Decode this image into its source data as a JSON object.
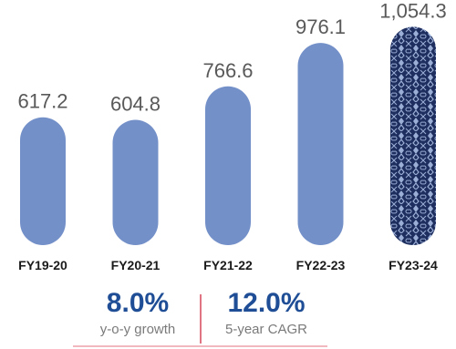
{
  "chart_data": {
    "type": "bar",
    "title": "",
    "xlabel": "",
    "ylabel": "",
    "categories": [
      "FY19-20",
      "FY20-21",
      "FY21-22",
      "FY22-23",
      "FY23-24"
    ],
    "values": [
      617.2,
      604.8,
      766.6,
      976.1,
      1054.3
    ],
    "value_labels": [
      "617.2",
      "604.8",
      "766.6",
      "976.1",
      "1,054.3"
    ],
    "ylim": [
      0,
      1100
    ],
    "grid": false,
    "legend": "none",
    "bar_color": "#7490c9",
    "highlight_color": "#1e2e5e",
    "highlight_pattern_color": "#9aaed6",
    "highlight_index": 4,
    "value_label_color": "#595959",
    "category_label_color": "#1a1a1a"
  },
  "stats": {
    "growth_value": "8.0%",
    "growth_label": "y-o-y growth",
    "cagr_value": "12.0%",
    "cagr_label": "5-year CAGR",
    "value_color": "#1f4e96",
    "divider_color": "#e07482"
  }
}
